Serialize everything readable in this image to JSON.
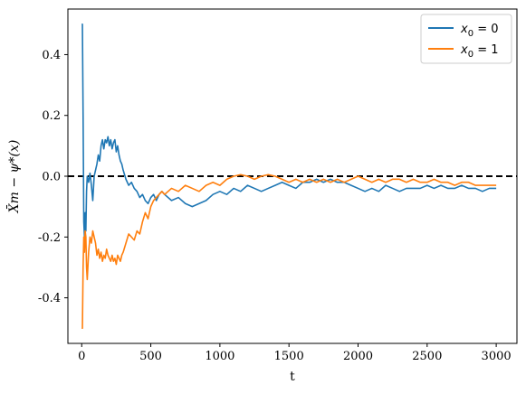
{
  "chart_data": {
    "type": "line",
    "xlabel": "t",
    "ylabel": "X̄m − ψ*(x)",
    "xlim": [
      -100,
      3150
    ],
    "ylim": [
      -0.55,
      0.55
    ],
    "xticks": [
      0,
      500,
      1000,
      1500,
      2000,
      2500,
      3000
    ],
    "xtick_labels": [
      "0",
      "500",
      "1000",
      "1500",
      "2000",
      "2500",
      "3000"
    ],
    "yticks": [
      0.4,
      0.2,
      0.0,
      -0.2,
      -0.4
    ],
    "ytick_labels": [
      "0.4",
      "0.2",
      "0.0",
      "-0.2",
      "-0.4"
    ],
    "reference_line": {
      "y": 0.0,
      "style": "dashed",
      "color": "#000000"
    },
    "legend_position": "top-right",
    "series": [
      {
        "name": "x₀ = 0",
        "legend_label": {
          "base": "x",
          "sub": "0",
          "suffix": "= 0"
        },
        "color": "#1f77b4",
        "x": [
          0,
          5,
          10,
          15,
          20,
          25,
          30,
          35,
          40,
          50,
          60,
          70,
          80,
          90,
          100,
          110,
          120,
          130,
          140,
          150,
          160,
          170,
          180,
          190,
          200,
          210,
          220,
          230,
          240,
          250,
          260,
          270,
          280,
          290,
          300,
          320,
          340,
          360,
          380,
          400,
          420,
          440,
          460,
          480,
          500,
          520,
          540,
          560,
          580,
          600,
          650,
          700,
          750,
          800,
          850,
          900,
          950,
          1000,
          1050,
          1100,
          1150,
          1200,
          1250,
          1300,
          1350,
          1400,
          1450,
          1500,
          1550,
          1600,
          1650,
          1700,
          1750,
          1800,
          1850,
          1900,
          1950,
          2000,
          2050,
          2100,
          2150,
          2200,
          2250,
          2300,
          2350,
          2400,
          2450,
          2500,
          2550,
          2600,
          2650,
          2700,
          2750,
          2800,
          2850,
          2900,
          2950,
          3000
        ],
        "y": [
          0.5,
          0.5,
          0.2,
          -0.15,
          -0.2,
          -0.12,
          -0.18,
          -0.05,
          0.0,
          -0.02,
          0.01,
          -0.03,
          -0.08,
          0.0,
          0.02,
          0.04,
          0.07,
          0.05,
          0.1,
          0.12,
          0.09,
          0.12,
          0.11,
          0.13,
          0.1,
          0.12,
          0.09,
          0.11,
          0.12,
          0.08,
          0.1,
          0.07,
          0.05,
          0.04,
          0.02,
          -0.01,
          -0.03,
          -0.02,
          -0.04,
          -0.05,
          -0.07,
          -0.06,
          -0.08,
          -0.09,
          -0.07,
          -0.06,
          -0.08,
          -0.06,
          -0.05,
          -0.06,
          -0.08,
          -0.07,
          -0.09,
          -0.1,
          -0.09,
          -0.08,
          -0.06,
          -0.05,
          -0.06,
          -0.04,
          -0.05,
          -0.03,
          -0.04,
          -0.05,
          -0.04,
          -0.03,
          -0.02,
          -0.03,
          -0.04,
          -0.02,
          -0.02,
          -0.01,
          -0.02,
          -0.01,
          -0.02,
          -0.02,
          -0.03,
          -0.04,
          -0.05,
          -0.04,
          -0.05,
          -0.03,
          -0.04,
          -0.05,
          -0.04,
          -0.04,
          -0.04,
          -0.03,
          -0.04,
          -0.03,
          -0.04,
          -0.04,
          -0.03,
          -0.04,
          -0.04,
          -0.05,
          -0.04,
          -0.04
        ]
      },
      {
        "name": "x₀ = 1",
        "legend_label": {
          "base": "x",
          "sub": "0",
          "suffix": "= 1"
        },
        "color": "#ff7f0e",
        "x": [
          0,
          5,
          10,
          15,
          20,
          25,
          30,
          35,
          40,
          50,
          60,
          70,
          80,
          90,
          100,
          110,
          120,
          130,
          140,
          150,
          160,
          170,
          180,
          190,
          200,
          210,
          220,
          230,
          240,
          250,
          260,
          270,
          280,
          290,
          300,
          320,
          340,
          360,
          380,
          400,
          420,
          440,
          460,
          480,
          500,
          520,
          540,
          560,
          580,
          600,
          650,
          700,
          750,
          800,
          850,
          900,
          950,
          1000,
          1050,
          1100,
          1150,
          1200,
          1250,
          1300,
          1350,
          1400,
          1450,
          1500,
          1550,
          1600,
          1650,
          1700,
          1750,
          1800,
          1850,
          1900,
          1950,
          2000,
          2050,
          2100,
          2150,
          2200,
          2250,
          2300,
          2350,
          2400,
          2450,
          2500,
          2550,
          2600,
          2650,
          2700,
          2750,
          2800,
          2850,
          2900,
          2950,
          3000
        ],
        "y": [
          -0.5,
          -0.5,
          -0.3,
          -0.2,
          -0.25,
          -0.18,
          -0.2,
          -0.3,
          -0.34,
          -0.25,
          -0.2,
          -0.22,
          -0.18,
          -0.2,
          -0.22,
          -0.26,
          -0.24,
          -0.27,
          -0.25,
          -0.28,
          -0.26,
          -0.27,
          -0.24,
          -0.26,
          -0.27,
          -0.28,
          -0.26,
          -0.28,
          -0.27,
          -0.29,
          -0.26,
          -0.27,
          -0.28,
          -0.26,
          -0.25,
          -0.22,
          -0.19,
          -0.2,
          -0.21,
          -0.18,
          -0.19,
          -0.15,
          -0.12,
          -0.14,
          -0.1,
          -0.08,
          -0.07,
          -0.06,
          -0.05,
          -0.06,
          -0.04,
          -0.05,
          -0.03,
          -0.04,
          -0.05,
          -0.03,
          -0.02,
          -0.03,
          -0.01,
          0.0,
          0.005,
          0.0,
          -0.01,
          0.0,
          0.005,
          0.0,
          -0.01,
          -0.02,
          -0.01,
          -0.02,
          -0.01,
          -0.02,
          -0.01,
          -0.02,
          -0.01,
          -0.02,
          -0.01,
          0.0,
          -0.01,
          -0.02,
          -0.01,
          -0.02,
          -0.01,
          -0.01,
          -0.02,
          -0.01,
          -0.02,
          -0.02,
          -0.01,
          -0.02,
          -0.02,
          -0.03,
          -0.02,
          -0.02,
          -0.03,
          -0.03,
          -0.03,
          -0.03
        ]
      }
    ]
  }
}
